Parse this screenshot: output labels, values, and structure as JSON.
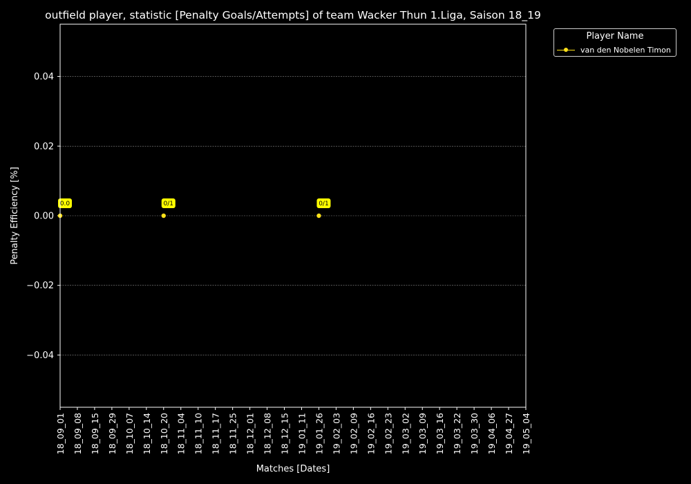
{
  "chart_data": {
    "type": "line",
    "title": "outfield player, statistic [Penalty Goals/Attempts] of team Wacker Thun 1.Liga, Saison 18_19",
    "xlabel": "Matches [Dates]",
    "ylabel": "Penalty Efficiency [%]",
    "categories": [
      "18_09_01",
      "18_09_08",
      "18_09_15",
      "18_09_29",
      "18_10_07",
      "18_10_14",
      "18_10_20",
      "18_11_04",
      "18_11_10",
      "18_11_17",
      "18_11_25",
      "18_12_01",
      "18_12_08",
      "18_12_15",
      "19_01_11",
      "19_01_26",
      "19_02_03",
      "19_02_09",
      "19_02_16",
      "19_02_23",
      "19_03_02",
      "19_03_09",
      "19_03_16",
      "19_03_22",
      "19_03_30",
      "19_04_06",
      "19_04_27",
      "19_05_04"
    ],
    "ylim": [
      -0.055,
      0.055
    ],
    "yticks": [
      0.04,
      0.02,
      0.0,
      -0.02,
      -0.04
    ],
    "ytick_labels": [
      "0.04",
      "0.02",
      "0.00",
      "−0.02",
      "−0.04"
    ],
    "grid": "horizontal dashed",
    "series": [
      {
        "name": "van den Nobelen Timon",
        "color": "#ffe11a",
        "points": [
          {
            "x": "18_09_01",
            "y": 0.0,
            "label": "0.0"
          },
          {
            "x": "18_10_20",
            "y": 0.0,
            "label": "0/1"
          },
          {
            "x": "19_01_26",
            "y": 0.0,
            "label": "0/1"
          }
        ]
      }
    ],
    "legend": {
      "title": "Player Name",
      "placement": "outside top-right"
    }
  }
}
